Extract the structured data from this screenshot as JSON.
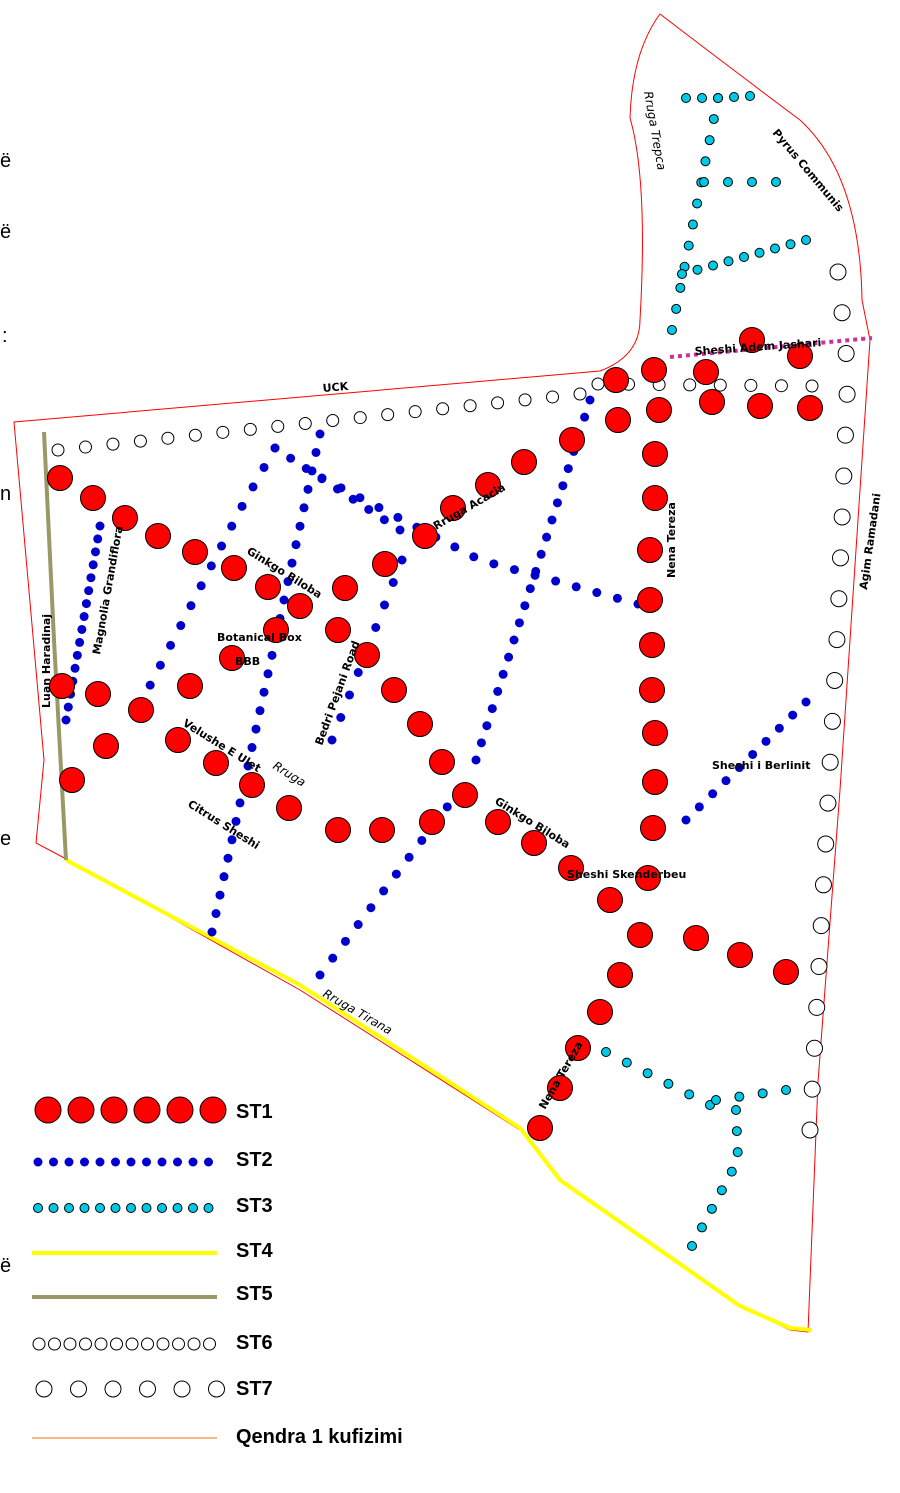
{
  "legend": [
    {
      "key": "ST1",
      "label": "ST1"
    },
    {
      "key": "ST2",
      "label": "ST2"
    },
    {
      "key": "ST3",
      "label": "ST3"
    },
    {
      "key": "ST4",
      "label": "ST4"
    },
    {
      "key": "ST5",
      "label": "ST5"
    },
    {
      "key": "ST6",
      "label": "ST6"
    },
    {
      "key": "ST7",
      "label": "ST7"
    },
    {
      "key": "boundary",
      "label": "Qendra 1 kufizimi"
    }
  ],
  "streets": {
    "uck": "UCK",
    "trepca": "Rruga Trepca",
    "pyrus": "Pyrus Communis",
    "adem": "Sheshi Adem Jashari",
    "nena_tereza_top": "Nena Tereza",
    "agim": "Agim Ramadani",
    "acacia": "Rruga Acacia",
    "ginkgo1": "Ginkgo Biloba",
    "magnolia": "Magnolia Grandiflora",
    "luan": "Luan Haradinaj",
    "botanical": "Botanical Box",
    "bbb": "BBB",
    "bedri": "Bedri Pejani Road",
    "velushe": "Velushe E Ulet",
    "rruga": "Rruga",
    "citrus": "Citrus Sheshi",
    "berlinit": "Sheshi i Berlinit",
    "ginkgo2": "Ginkgo Biloba",
    "skenderbeu": "Sheshi Skenderbeu",
    "tirana": "Rruga Tirana",
    "nena_tereza_bottom": "Nena Tereza"
  },
  "left_edge_fragments": [
    "ë",
    "ë",
    ":",
    "n",
    "e",
    "ë"
  ],
  "colors": {
    "ST1": "#ff0000",
    "ST2": "#0000cc",
    "ST3": "#00c8e6",
    "ST4": "#ffff00",
    "ST5": "#999966",
    "ST6": "#ffffff",
    "ST7": "#ffffff",
    "boundary": "#ff0000",
    "boundary_legend": "#f2a25a",
    "dotted_magenta": "#cc3399"
  }
}
